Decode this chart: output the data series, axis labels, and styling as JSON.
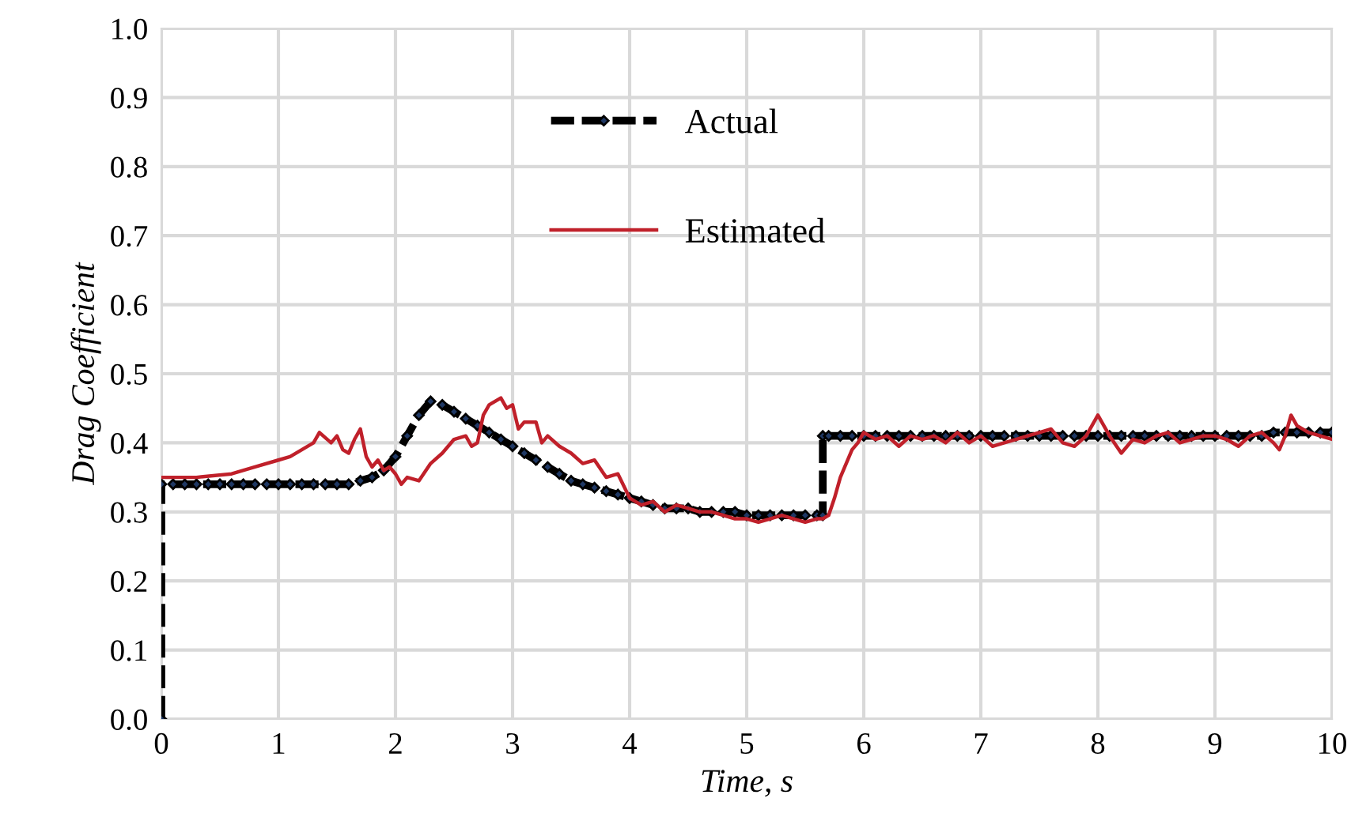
{
  "chart_data": {
    "type": "line",
    "xlabel": "Time, s",
    "ylabel": "Drag Coefficient",
    "xlim": [
      0,
      10
    ],
    "ylim": [
      0,
      1.0
    ],
    "xticks": [
      0,
      1,
      2,
      3,
      4,
      5,
      6,
      7,
      8,
      9,
      10
    ],
    "yticks": [
      {
        "value": 0,
        "label": "0.0"
      },
      0.1,
      0.2,
      0.3,
      0.4,
      0.5,
      0.6,
      0.7,
      0.8,
      0.9,
      {
        "value": 1,
        "label": "1.0"
      }
    ],
    "grid": true,
    "legend": "top",
    "series": [
      {
        "name": "Actual",
        "color": "#000000",
        "line_style": "dashed",
        "marker": "diamond",
        "x": [
          0,
          0,
          0.1,
          0.2,
          0.3,
          0.4,
          0.5,
          0.6,
          0.7,
          0.8,
          0.9,
          1.0,
          1.1,
          1.2,
          1.3,
          1.4,
          1.5,
          1.6,
          1.7,
          1.8,
          1.9,
          2.0,
          2.1,
          2.2,
          2.3,
          2.4,
          2.5,
          2.6,
          2.7,
          2.8,
          2.9,
          3.0,
          3.1,
          3.2,
          3.3,
          3.4,
          3.5,
          3.6,
          3.7,
          3.8,
          3.9,
          4.0,
          4.1,
          4.2,
          4.3,
          4.4,
          4.5,
          4.6,
          4.7,
          4.8,
          4.9,
          5.0,
          5.1,
          5.2,
          5.3,
          5.4,
          5.5,
          5.6,
          5.65,
          5.65,
          5.7,
          5.8,
          5.9,
          6.0,
          6.1,
          6.2,
          6.3,
          6.4,
          6.5,
          6.6,
          6.7,
          6.8,
          6.9,
          7.0,
          7.1,
          7.2,
          7.3,
          7.4,
          7.5,
          7.6,
          7.7,
          7.8,
          7.9,
          8.0,
          8.1,
          8.2,
          8.3,
          8.4,
          8.5,
          8.6,
          8.7,
          8.8,
          8.9,
          9.0,
          9.1,
          9.2,
          9.3,
          9.4,
          9.5,
          9.6,
          9.7,
          9.8,
          9.9,
          10.0
        ],
        "values": [
          0,
          0.34,
          0.34,
          0.34,
          0.34,
          0.34,
          0.34,
          0.34,
          0.34,
          0.34,
          0.34,
          0.34,
          0.34,
          0.34,
          0.34,
          0.34,
          0.34,
          0.34,
          0.345,
          0.35,
          0.36,
          0.38,
          0.41,
          0.44,
          0.46,
          0.455,
          0.445,
          0.435,
          0.425,
          0.415,
          0.405,
          0.395,
          0.385,
          0.375,
          0.365,
          0.355,
          0.345,
          0.34,
          0.335,
          0.33,
          0.325,
          0.32,
          0.315,
          0.31,
          0.305,
          0.305,
          0.305,
          0.3,
          0.3,
          0.3,
          0.3,
          0.295,
          0.295,
          0.295,
          0.295,
          0.295,
          0.295,
          0.295,
          0.295,
          0.41,
          0.41,
          0.41,
          0.41,
          0.41,
          0.41,
          0.41,
          0.41,
          0.41,
          0.41,
          0.41,
          0.41,
          0.41,
          0.41,
          0.41,
          0.41,
          0.41,
          0.41,
          0.41,
          0.41,
          0.41,
          0.41,
          0.41,
          0.41,
          0.41,
          0.41,
          0.41,
          0.41,
          0.41,
          0.41,
          0.41,
          0.41,
          0.41,
          0.41,
          0.41,
          0.41,
          0.41,
          0.41,
          0.41,
          0.415,
          0.415,
          0.415,
          0.415,
          0.415,
          0.415
        ]
      },
      {
        "name": "Estimated",
        "color": "#c0202a",
        "line_style": "solid",
        "marker": "none",
        "x": [
          0,
          0.3,
          0.6,
          0.8,
          1.0,
          1.1,
          1.2,
          1.3,
          1.35,
          1.45,
          1.5,
          1.55,
          1.6,
          1.65,
          1.7,
          1.75,
          1.8,
          1.85,
          1.9,
          1.95,
          2.0,
          2.05,
          2.1,
          2.2,
          2.3,
          2.4,
          2.5,
          2.6,
          2.65,
          2.7,
          2.75,
          2.8,
          2.9,
          2.95,
          3.0,
          3.05,
          3.1,
          3.2,
          3.25,
          3.3,
          3.4,
          3.5,
          3.6,
          3.7,
          3.8,
          3.9,
          4.0,
          4.1,
          4.2,
          4.3,
          4.4,
          4.5,
          4.6,
          4.7,
          4.8,
          4.9,
          5.0,
          5.1,
          5.2,
          5.3,
          5.4,
          5.5,
          5.6,
          5.65,
          5.7,
          5.75,
          5.8,
          5.85,
          5.9,
          5.95,
          6.0,
          6.1,
          6.2,
          6.3,
          6.4,
          6.5,
          6.6,
          6.7,
          6.8,
          6.9,
          7.0,
          7.1,
          7.2,
          7.3,
          7.4,
          7.5,
          7.6,
          7.7,
          7.8,
          7.9,
          8.0,
          8.1,
          8.2,
          8.3,
          8.4,
          8.5,
          8.6,
          8.7,
          8.8,
          8.9,
          9.0,
          9.1,
          9.2,
          9.3,
          9.4,
          9.5,
          9.55,
          9.6,
          9.65,
          9.7,
          9.8,
          9.9,
          10.0
        ],
        "values": [
          0.35,
          0.35,
          0.355,
          0.365,
          0.375,
          0.38,
          0.39,
          0.4,
          0.415,
          0.4,
          0.41,
          0.39,
          0.385,
          0.405,
          0.42,
          0.38,
          0.365,
          0.375,
          0.36,
          0.365,
          0.355,
          0.34,
          0.35,
          0.345,
          0.37,
          0.385,
          0.405,
          0.41,
          0.395,
          0.4,
          0.44,
          0.455,
          0.465,
          0.45,
          0.455,
          0.42,
          0.43,
          0.43,
          0.4,
          0.41,
          0.395,
          0.385,
          0.37,
          0.375,
          0.35,
          0.355,
          0.32,
          0.31,
          0.315,
          0.3,
          0.31,
          0.305,
          0.3,
          0.3,
          0.295,
          0.29,
          0.29,
          0.285,
          0.29,
          0.295,
          0.29,
          0.285,
          0.29,
          0.29,
          0.295,
          0.32,
          0.35,
          0.37,
          0.39,
          0.4,
          0.415,
          0.405,
          0.41,
          0.395,
          0.41,
          0.405,
          0.41,
          0.4,
          0.415,
          0.4,
          0.41,
          0.395,
          0.4,
          0.405,
          0.41,
          0.415,
          0.42,
          0.4,
          0.395,
          0.41,
          0.44,
          0.41,
          0.385,
          0.405,
          0.4,
          0.41,
          0.415,
          0.4,
          0.405,
          0.41,
          0.41,
          0.405,
          0.395,
          0.41,
          0.415,
          0.4,
          0.39,
          0.41,
          0.44,
          0.425,
          0.415,
          0.41,
          0.405
        ]
      }
    ]
  }
}
